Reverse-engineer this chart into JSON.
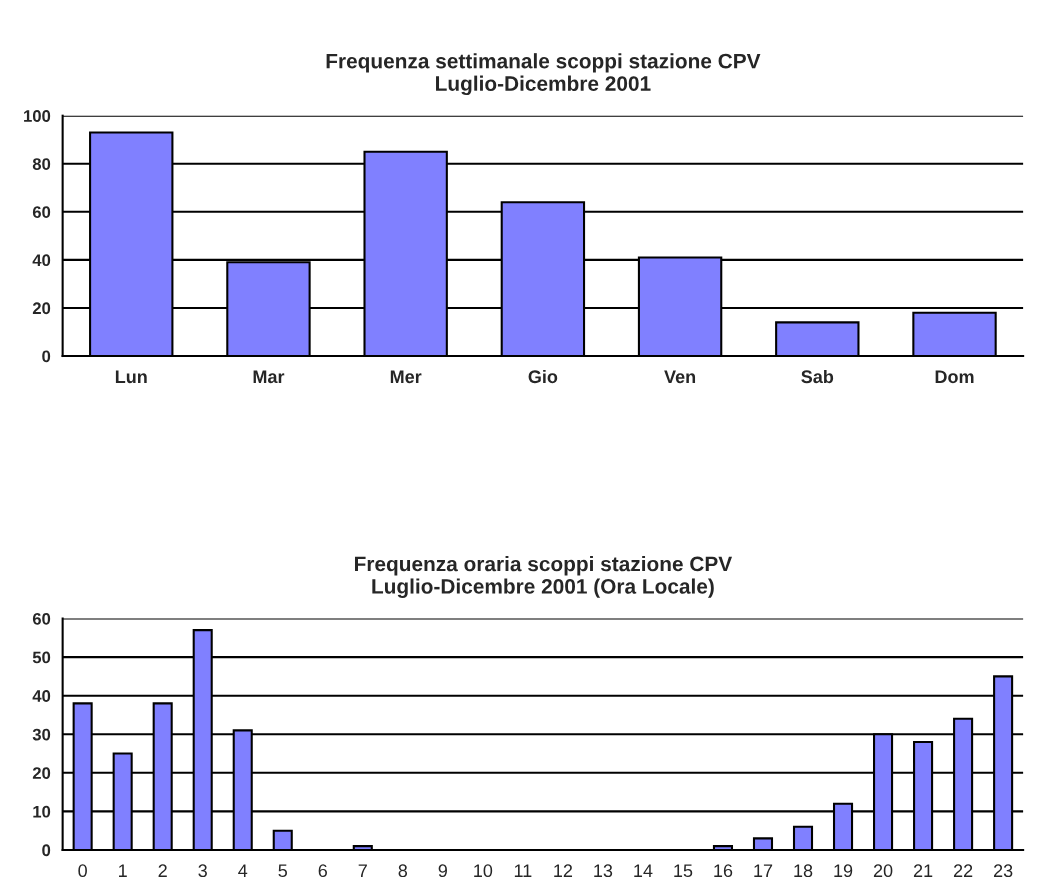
{
  "chart_data": [
    {
      "type": "bar",
      "title": "Frequenza settimanale scoppi stazione CPV\nLuglio-Dicembre 2001",
      "categories": [
        "Lun",
        "Mar",
        "Mer",
        "Gio",
        "Ven",
        "Sab",
        "Dom"
      ],
      "values": [
        93,
        39,
        85,
        64,
        41,
        14,
        18
      ],
      "color": "#8080ff",
      "ylim": [
        0,
        100
      ],
      "yticks": [
        0,
        20,
        40,
        60,
        80,
        100
      ],
      "grid": "y"
    },
    {
      "type": "bar",
      "title": "Frequenza oraria scoppi stazione CPV\nLuglio-Dicembre 2001 (Ora Locale)",
      "categories": [
        "0",
        "1",
        "2",
        "3",
        "4",
        "5",
        "6",
        "7",
        "8",
        "9",
        "10",
        "11",
        "12",
        "13",
        "14",
        "15",
        "16",
        "17",
        "18",
        "19",
        "20",
        "21",
        "22",
        "23"
      ],
      "values": [
        38,
        25,
        38,
        57,
        31,
        5,
        0,
        1,
        0,
        0,
        0,
        0,
        0,
        0,
        0,
        0,
        1,
        3,
        6,
        12,
        30,
        28,
        34,
        45
      ],
      "color": "#8080ff",
      "ylim": [
        0,
        60
      ],
      "yticks": [
        0,
        10,
        20,
        30,
        40,
        50,
        60
      ],
      "grid": "y"
    }
  ]
}
